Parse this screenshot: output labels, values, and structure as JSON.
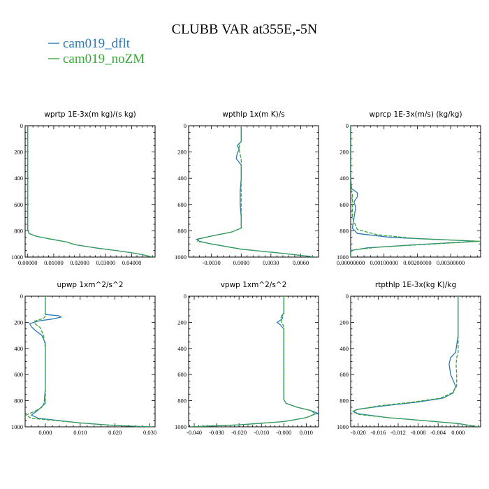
{
  "title": "CLUBB VAR at355E,-5N",
  "colors": {
    "dflt": "#2a7ab5",
    "nozm": "#3aa83a"
  },
  "legend": [
    {
      "label": "cam019_dflt",
      "color": "#2a7ab5"
    },
    {
      "label": "cam019_noZM",
      "color": "#3aa83a"
    }
  ],
  "chart_data": [
    {
      "type": "line",
      "title": "wprtp  1E-3x(m kg)/(s kg)",
      "xlim": [
        -0.001,
        0.049
      ],
      "ylim": [
        1000,
        0
      ],
      "xticks": [
        0,
        0.01,
        0.02,
        0.03,
        0.04
      ],
      "xtick_labels": [
        "0.00000",
        "0.01000",
        "0.02000",
        "0.03000",
        "0.04000"
      ],
      "yticks": [
        0,
        200,
        400,
        600,
        800,
        1000
      ],
      "series": [
        {
          "name": "cam019_dflt",
          "points": [
            [
              0,
              0
            ],
            [
              0,
              500
            ],
            [
              0,
              790
            ],
            [
              0.0005,
              820
            ],
            [
              0.003,
              840
            ],
            [
              0.008,
              860
            ],
            [
              0.015,
              885
            ],
            [
              0.018,
              905
            ],
            [
              0.026,
              930
            ],
            [
              0.034,
              950
            ],
            [
              0.041,
              970
            ],
            [
              0.045,
              985
            ],
            [
              0.048,
              1000
            ]
          ]
        },
        {
          "name": "cam019_noZM",
          "points": [
            [
              0,
              0
            ],
            [
              0,
              500
            ],
            [
              0,
              790
            ],
            [
              0.0005,
              820
            ],
            [
              0.003,
              840
            ],
            [
              0.008,
              860
            ],
            [
              0.015,
              885
            ],
            [
              0.018,
              905
            ],
            [
              0.026,
              930
            ],
            [
              0.034,
              950
            ],
            [
              0.041,
              970
            ],
            [
              0.045,
              985
            ],
            [
              0.048,
              1000
            ]
          ]
        }
      ]
    },
    {
      "type": "line",
      "title": "wpthlp  1x(m K)/s",
      "xlim": [
        -0.0053,
        0.0078
      ],
      "ylim": [
        1000,
        0
      ],
      "xticks": [
        -0.003,
        0,
        0.003,
        0.006
      ],
      "xtick_labels": [
        "-0.0030",
        "0.0000",
        "0.0030",
        "0.0060"
      ],
      "yticks": [
        0,
        200,
        400,
        600,
        800,
        1000
      ],
      "series": [
        {
          "name": "cam019_dflt",
          "points": [
            [
              0,
              0
            ],
            [
              0,
              120
            ],
            [
              -0.0004,
              150
            ],
            [
              -0.0002,
              180
            ],
            [
              -0.0004,
              210
            ],
            [
              -0.0005,
              250
            ],
            [
              0,
              300
            ],
            [
              0,
              400
            ],
            [
              -0.0001,
              500
            ],
            [
              -0.0001,
              600
            ],
            [
              0,
              700
            ],
            [
              0,
              780
            ],
            [
              -0.001,
              810
            ],
            [
              -0.003,
              840
            ],
            [
              -0.0045,
              865
            ],
            [
              -0.0042,
              880
            ],
            [
              -0.003,
              900
            ],
            [
              0,
              940
            ],
            [
              0.004,
              970
            ],
            [
              0.0075,
              1000
            ]
          ]
        },
        {
          "name": "cam019_noZM",
          "points": [
            [
              0,
              0
            ],
            [
              0,
              120
            ],
            [
              -0.0002,
              140
            ],
            [
              -0.0002,
              180
            ],
            [
              -0.0001,
              220
            ],
            [
              0,
              260
            ],
            [
              0,
              400
            ],
            [
              0,
              500
            ],
            [
              0,
              600
            ],
            [
              0,
              700
            ],
            [
              0,
              780
            ],
            [
              -0.001,
              810
            ],
            [
              -0.003,
              840
            ],
            [
              -0.0043,
              862
            ],
            [
              -0.0044,
              880
            ],
            [
              -0.003,
              900
            ],
            [
              0,
              940
            ],
            [
              0.004,
              970
            ],
            [
              0.0075,
              1000
            ]
          ]
        }
      ]
    },
    {
      "type": "line",
      "title": "wprcp  1E-3x(m/s) (kg/kg)",
      "xlim": [
        0,
        0.0039
      ],
      "ylim": [
        1000,
        0
      ],
      "xticks": [
        0,
        0.001,
        0.002,
        0.003
      ],
      "xtick_labels": [
        "0.00000000",
        "0.00100000",
        "0.00200000",
        "0.00300000"
      ],
      "yticks": [
        0,
        200,
        400,
        600,
        800,
        1000
      ],
      "series": [
        {
          "name": "cam019_dflt",
          "points": [
            [
              0,
              0
            ],
            [
              0,
              400
            ],
            [
              3e-05,
              480
            ],
            [
              0.0002,
              510
            ],
            [
              0.0002,
              540
            ],
            [
              0.0001,
              580
            ],
            [
              0.00015,
              620
            ],
            [
              0.0001,
              700
            ],
            [
              5e-05,
              780
            ],
            [
              0.0002,
              820
            ],
            [
              0.0012,
              850
            ],
            [
              0.003,
              870
            ],
            [
              0.0038,
              880
            ],
            [
              0.002,
              905
            ],
            [
              0.0005,
              930
            ],
            [
              0,
              950
            ],
            [
              0,
              1000
            ]
          ]
        },
        {
          "name": "cam019_noZM",
          "points": [
            [
              0,
              0
            ],
            [
              0,
              400
            ],
            [
              0,
              480
            ],
            [
              5e-05,
              520
            ],
            [
              5e-05,
              600
            ],
            [
              5e-05,
              700
            ],
            [
              0.0002,
              790
            ],
            [
              0.0008,
              830
            ],
            [
              0.002,
              860
            ],
            [
              0.0035,
              875
            ],
            [
              0.0039,
              880
            ],
            [
              0.0025,
              900
            ],
            [
              0.0008,
              925
            ],
            [
              0.0001,
              945
            ],
            [
              0,
              960
            ],
            [
              0,
              1000
            ]
          ]
        }
      ]
    },
    {
      "type": "line",
      "title": "upwp  1xm^2/s^2",
      "xlim": [
        -0.0058,
        0.0315
      ],
      "ylim": [
        1000,
        0
      ],
      "xticks": [
        0,
        0.01,
        0.02,
        0.03
      ],
      "xtick_labels": [
        "0.000",
        "0.010",
        "0.020",
        "0.030"
      ],
      "yticks": [
        0,
        200,
        400,
        600,
        800,
        1000
      ],
      "series": [
        {
          "name": "cam019_dflt",
          "points": [
            [
              0,
              0
            ],
            [
              0,
              140
            ],
            [
              0.004,
              150
            ],
            [
              0.0045,
              160
            ],
            [
              0.002,
              175
            ],
            [
              -0.002,
              190
            ],
            [
              -0.0045,
              210
            ],
            [
              -0.004,
              235
            ],
            [
              -0.003,
              260
            ],
            [
              -0.001,
              300
            ],
            [
              0,
              360
            ],
            [
              0,
              500
            ],
            [
              0,
              600
            ],
            [
              0,
              700
            ],
            [
              -0.0003,
              800
            ],
            [
              0,
              820
            ],
            [
              -0.002,
              870
            ],
            [
              -0.004,
              910
            ],
            [
              -0.002,
              935
            ],
            [
              0.01,
              970
            ],
            [
              0.02,
              990
            ],
            [
              0.0305,
              1000
            ]
          ]
        },
        {
          "name": "cam019_noZM",
          "points": [
            [
              0,
              0
            ],
            [
              0,
              150
            ],
            [
              -0.0005,
              170
            ],
            [
              -0.003,
              190
            ],
            [
              -0.003,
              210
            ],
            [
              -0.0015,
              240
            ],
            [
              -0.0005,
              300
            ],
            [
              0,
              400
            ],
            [
              0,
              500
            ],
            [
              0,
              600
            ],
            [
              0,
              700
            ],
            [
              0,
              800
            ],
            [
              -0.001,
              850
            ],
            [
              -0.003,
              880
            ],
            [
              -0.0055,
              910
            ],
            [
              -0.004,
              935
            ],
            [
              0.01,
              970
            ],
            [
              0.02,
              990
            ],
            [
              0.0305,
              1000
            ]
          ]
        }
      ]
    },
    {
      "type": "line",
      "title": "vpwp  1xm^2/s^2",
      "xlim": [
        -0.0425,
        0.0155
      ],
      "ylim": [
        1000,
        0
      ],
      "xticks": [
        -0.04,
        -0.03,
        -0.02,
        -0.01,
        0,
        0.01
      ],
      "xtick_labels": [
        "-0.040",
        "-0.030",
        "-0.020",
        "-0.010",
        "-0.000",
        "0.010"
      ],
      "yticks": [
        0,
        200,
        400,
        600,
        800,
        1000
      ],
      "series": [
        {
          "name": "cam019_dflt",
          "points": [
            [
              0,
              0
            ],
            [
              0,
              130
            ],
            [
              -0.001,
              150
            ],
            [
              -0.0005,
              170
            ],
            [
              -0.002,
              190
            ],
            [
              -0.003,
              200
            ],
            [
              -0.0015,
              220
            ],
            [
              0,
              250
            ],
            [
              0,
              280
            ],
            [
              0,
              400
            ],
            [
              0,
              600
            ],
            [
              0,
              790
            ],
            [
              0.001,
              820
            ],
            [
              0.006,
              850
            ],
            [
              0.012,
              875
            ],
            [
              0.015,
              895
            ],
            [
              0.01,
              930
            ],
            [
              0,
              960
            ],
            [
              -0.02,
              985
            ],
            [
              -0.042,
              1000
            ]
          ]
        },
        {
          "name": "cam019_noZM",
          "points": [
            [
              0,
              0
            ],
            [
              0,
              140
            ],
            [
              -0.0015,
              170
            ],
            [
              -0.001,
              200
            ],
            [
              0,
              230
            ],
            [
              0,
              270
            ],
            [
              0,
              400
            ],
            [
              0,
              600
            ],
            [
              0,
              790
            ],
            [
              0.001,
              820
            ],
            [
              0.006,
              850
            ],
            [
              0.012,
              875
            ],
            [
              0.014,
              900
            ],
            [
              0.01,
              930
            ],
            [
              0,
              960
            ],
            [
              -0.02,
              985
            ],
            [
              -0.042,
              1000
            ]
          ]
        }
      ]
    },
    {
      "type": "line",
      "title": "rtpthlp  1E-3x(kg K)/kg",
      "xlim": [
        -0.0215,
        0.0045
      ],
      "ylim": [
        1000,
        0
      ],
      "xticks": [
        -0.02,
        -0.016,
        -0.012,
        -0.008,
        -0.004,
        0
      ],
      "xtick_labels": [
        "-0.020",
        "-0.016",
        "-0.012",
        "-0.008",
        "-0.004",
        "0.000"
      ],
      "yticks": [
        0,
        200,
        400,
        600,
        800,
        1000
      ],
      "series": [
        {
          "name": "cam019_dflt",
          "points": [
            [
              0,
              0
            ],
            [
              0,
              300
            ],
            [
              -0.0005,
              430
            ],
            [
              -0.0015,
              470
            ],
            [
              -0.0018,
              520
            ],
            [
              -0.0015,
              600
            ],
            [
              -0.0005,
              690
            ],
            [
              -0.001,
              740
            ],
            [
              -0.003,
              780
            ],
            [
              -0.008,
              810
            ],
            [
              -0.015,
              840
            ],
            [
              -0.02,
              865
            ],
            [
              -0.021,
              880
            ],
            [
              -0.02,
              900
            ],
            [
              -0.014,
              930
            ],
            [
              -0.006,
              955
            ],
            [
              0,
              975
            ],
            [
              0.004,
              1000
            ]
          ]
        },
        {
          "name": "cam019_noZM",
          "points": [
            [
              0,
              0
            ],
            [
              0,
              300
            ],
            [
              0,
              430
            ],
            [
              -0.0003,
              470
            ],
            [
              -0.0004,
              520
            ],
            [
              -0.0003,
              600
            ],
            [
              -0.0003,
              690
            ],
            [
              -0.0012,
              740
            ],
            [
              -0.0035,
              780
            ],
            [
              -0.009,
              810
            ],
            [
              -0.016,
              840
            ],
            [
              -0.0205,
              870
            ],
            [
              -0.021,
              885
            ],
            [
              -0.02,
              905
            ],
            [
              -0.014,
              930
            ],
            [
              -0.006,
              955
            ],
            [
              0,
              975
            ],
            [
              0.004,
              1000
            ]
          ]
        }
      ]
    }
  ]
}
